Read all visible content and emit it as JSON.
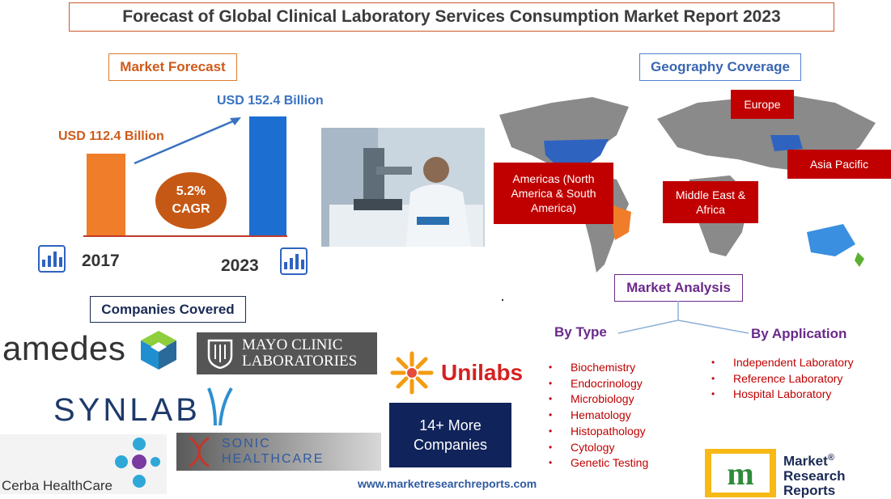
{
  "title": "Forecast of Global Clinical Laboratory Services Consumption Market Report 2023",
  "market_forecast": {
    "label": "Market Forecast",
    "value_2017": "USD 112.4 Billion",
    "value_2023": "USD 152.4 Billion",
    "cagr_value": "5.2%",
    "cagr_label": "CAGR",
    "year_start": "2017",
    "year_end": "2023",
    "bar_values": [
      112.4,
      152.4
    ],
    "colors": {
      "bar_2017": "#f07d2a",
      "bar_2023": "#1c6fd1",
      "cagr_circle": "#c65815"
    }
  },
  "geography": {
    "label": "Geography Coverage",
    "regions": {
      "europe": "Europe",
      "americas": "Americas (North America & South America)",
      "mea": "Middle East & Africa",
      "apac": "Asia Pacific"
    }
  },
  "market_analysis": {
    "label": "Market Analysis",
    "by_type_label": "By Type",
    "by_application_label": "By Application",
    "by_type": [
      "Biochemistry",
      "Endocrinology",
      "Microbiology",
      "Hematology",
      "Histopathology",
      "Cytology",
      "Genetic Testing"
    ],
    "by_application": [
      "Independent Laboratory",
      "Reference Laboratory",
      "Hospital Laboratory"
    ]
  },
  "companies": {
    "label": "Companies Covered",
    "amedes": "amedes",
    "mayo_line1": "MAYO CLINIC",
    "mayo_line2": "LABORATORIES",
    "synlab": "SYNLAB",
    "unilabs": "Unilabs",
    "cerba": "Cerba HealthCare",
    "sonic_line1": "SONIC",
    "sonic_line2": "HEALTHCARE",
    "more_line1": "14+ More",
    "more_line2": "Companies"
  },
  "footer": {
    "url": "www.marketresearchreports.com",
    "brand_line1": "Market",
    "brand_line2": "Research",
    "brand_line3": "Reports",
    "brand_registered": "®",
    "brand_mark": "m"
  }
}
